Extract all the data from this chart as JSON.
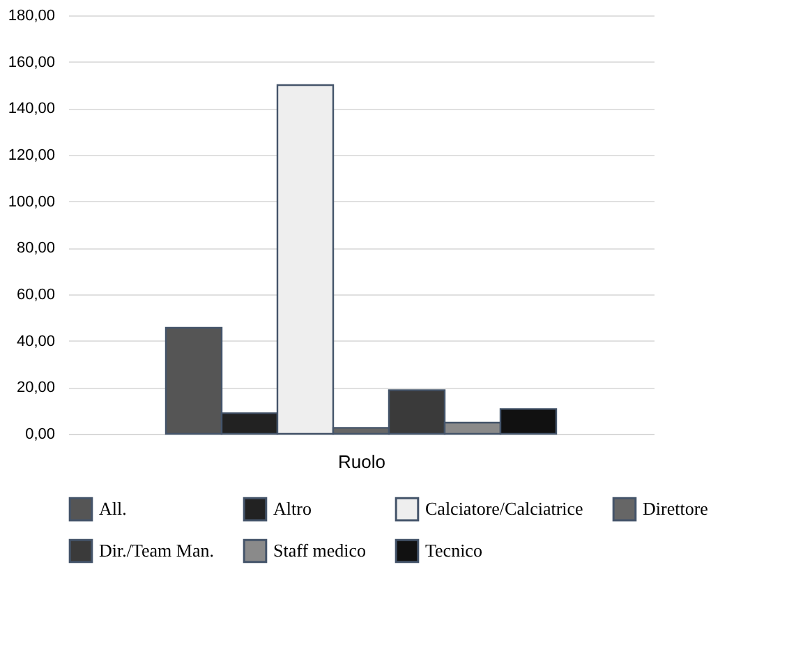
{
  "chart_data": {
    "type": "bar",
    "xlabel": "Ruolo",
    "categories": [
      null
    ],
    "series": [
      {
        "name": "All.",
        "color": "#555555",
        "values": [
          45.6
        ]
      },
      {
        "name": "Altro",
        "color": "#222222",
        "values": [
          8.9
        ]
      },
      {
        "name": "Calciatore/Calciatrice",
        "color": "#eeeeee",
        "values": [
          150
        ]
      },
      {
        "name": "Direttore",
        "color": "#666666",
        "values": [
          2.6
        ]
      },
      {
        "name": "Dir./Team Man.",
        "color": "#3a3a3a",
        "values": [
          18.8
        ]
      },
      {
        "name": "Staff medico",
        "color": "#8a8a8a",
        "values": [
          4.8
        ]
      },
      {
        "name": "Tecnico",
        "color": "#111111",
        "values": [
          10.7
        ]
      }
    ],
    "ylim": [
      0,
      180
    ],
    "yticks": [
      {
        "value": 0,
        "label": "0,00"
      },
      {
        "value": 20,
        "label": "20,00"
      },
      {
        "value": 40,
        "label": "40,00"
      },
      {
        "value": 60,
        "label": "60,00"
      },
      {
        "value": 80,
        "label": "80,00"
      },
      {
        "value": 100,
        "label": "100,00"
      },
      {
        "value": 120,
        "label": "120,00"
      },
      {
        "value": 140,
        "label": "140,00"
      },
      {
        "value": 160,
        "label": "160,00"
      },
      {
        "value": 180,
        "label": "180,00"
      }
    ],
    "grid": "y",
    "legend": "bottom"
  }
}
